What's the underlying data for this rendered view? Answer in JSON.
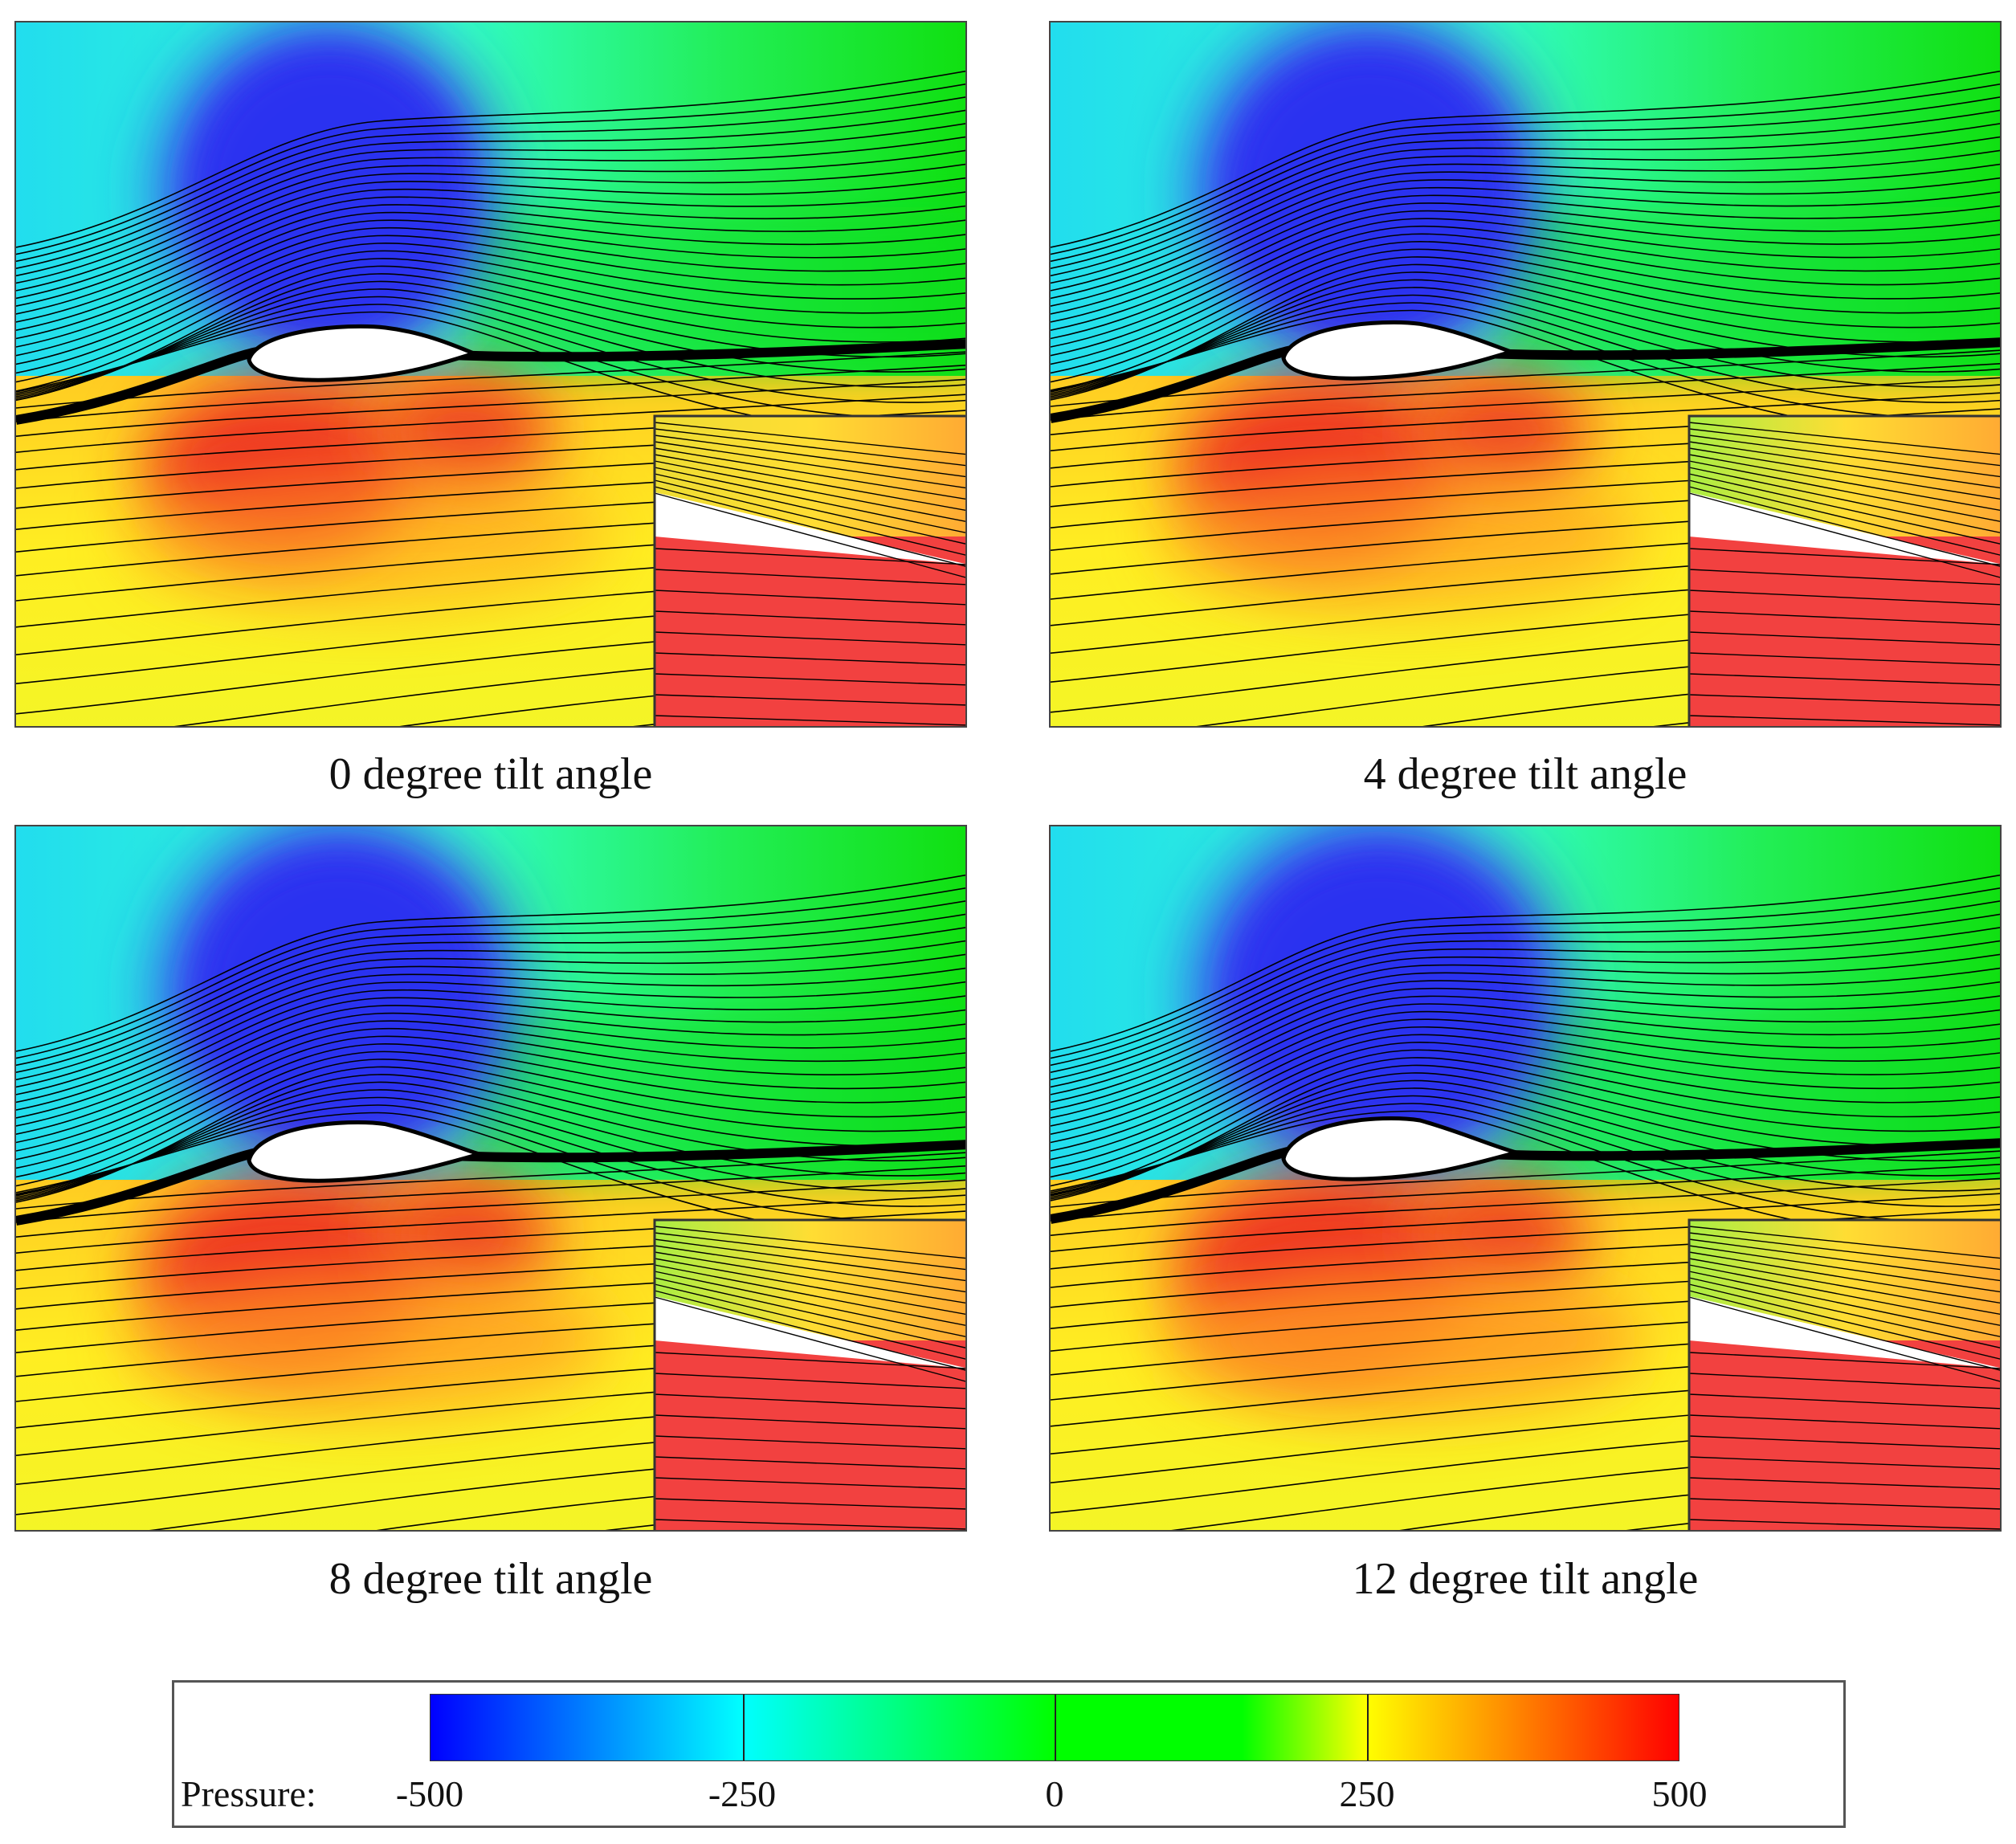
{
  "panels": [
    {
      "caption": "0 degree tilt angle",
      "tilt_angle": 0
    },
    {
      "caption": "4 degree tilt angle",
      "tilt_angle": 4
    },
    {
      "caption": "8 degree tilt angle",
      "tilt_angle": 8
    },
    {
      "caption": "12 degree tilt angle",
      "tilt_angle": 12
    }
  ],
  "legend": {
    "title": "Pressure:",
    "ticks": [
      "-500",
      "-250",
      "0",
      "250",
      "500"
    ],
    "range": [
      -500,
      500
    ],
    "colors": [
      "#0000ff",
      "#00ffff",
      "#00ff00",
      "#ffff00",
      "#ff0000"
    ]
  }
}
